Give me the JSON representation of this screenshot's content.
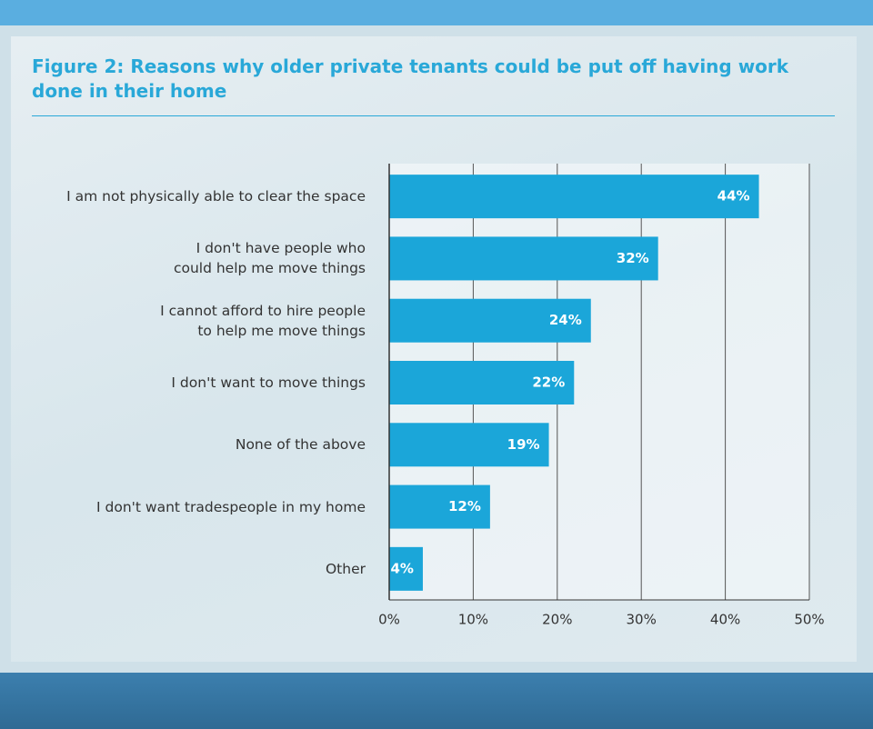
{
  "chart_data": {
    "type": "bar",
    "title": "Figure 2: Reasons why older private tenants could be put off having work done in their home",
    "categories": [
      "I am not physically able to clear the space",
      "I don't have people who\ncould help me move things",
      "I cannot afford to hire people\nto help me move things",
      "I don't want to move things",
      "None of the above",
      "I don't want tradespeople in my home",
      "Other"
    ],
    "values": [
      44,
      32,
      24,
      22,
      19,
      12,
      4
    ],
    "value_labels": [
      "44%",
      "32%",
      "24%",
      "22%",
      "19%",
      "12%",
      "4%"
    ],
    "color": "#1ba6d9",
    "xlim": [
      0,
      50
    ],
    "xticks": [
      {
        "value": 0,
        "label": "0%"
      },
      {
        "value": 10,
        "label": "10%"
      },
      {
        "value": 20,
        "label": "20%"
      },
      {
        "value": 30,
        "label": "30%"
      },
      {
        "value": 40,
        "label": "40%"
      },
      {
        "value": 50,
        "label": "50%"
      }
    ],
    "grid": true
  }
}
